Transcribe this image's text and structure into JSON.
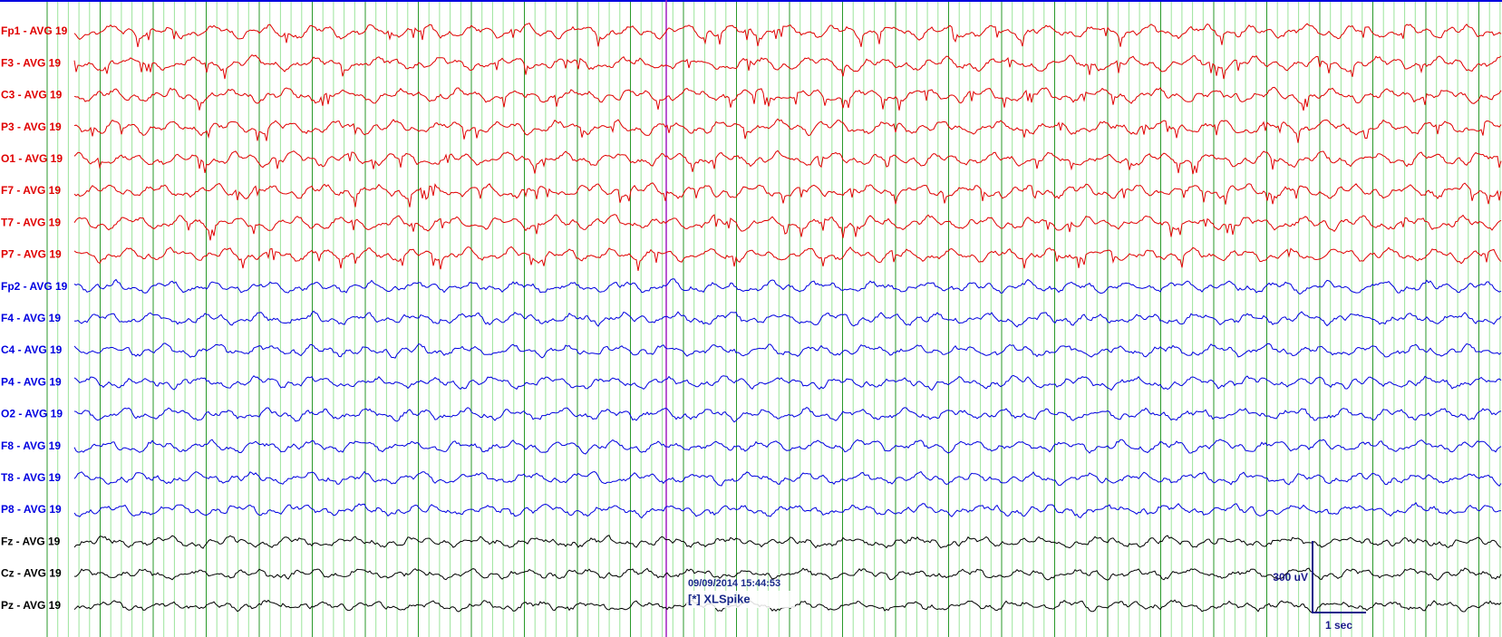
{
  "channels": [
    {
      "label": "Fp1 - AVG 19",
      "color": "#e00000"
    },
    {
      "label": "F3 - AVG 19",
      "color": "#e00000"
    },
    {
      "label": "C3 - AVG 19",
      "color": "#e00000"
    },
    {
      "label": "P3 - AVG 19",
      "color": "#e00000"
    },
    {
      "label": "O1 - AVG 19",
      "color": "#e00000"
    },
    {
      "label": "F7 - AVG 19",
      "color": "#e00000"
    },
    {
      "label": "T7 - AVG 19",
      "color": "#e00000"
    },
    {
      "label": "P7 - AVG 19",
      "color": "#e00000"
    },
    {
      "label": "Fp2 - AVG 19",
      "color": "#0000e0"
    },
    {
      "label": "F4 - AVG 19",
      "color": "#0000e0"
    },
    {
      "label": "C4 - AVG 19",
      "color": "#0000e0"
    },
    {
      "label": "P4 - AVG 19",
      "color": "#0000e0"
    },
    {
      "label": "O2 - AVG 19",
      "color": "#0000e0"
    },
    {
      "label": "F8 - AVG 19",
      "color": "#0000e0"
    },
    {
      "label": "T8 - AVG 19",
      "color": "#0000e0"
    },
    {
      "label": "P8 - AVG 19",
      "color": "#0000e0"
    },
    {
      "label": "Fz - AVG 19",
      "color": "#000000"
    },
    {
      "label": "Cz - AVG 19",
      "color": "#000000"
    },
    {
      "label": "Pz - AVG 19",
      "color": "#000000"
    }
  ],
  "annotation": {
    "timestamp": "09/09/2014 15:44:53",
    "event": "[*] XLSpike"
  },
  "scale": {
    "amplitude": "300 uV",
    "time": "1 sec"
  }
}
